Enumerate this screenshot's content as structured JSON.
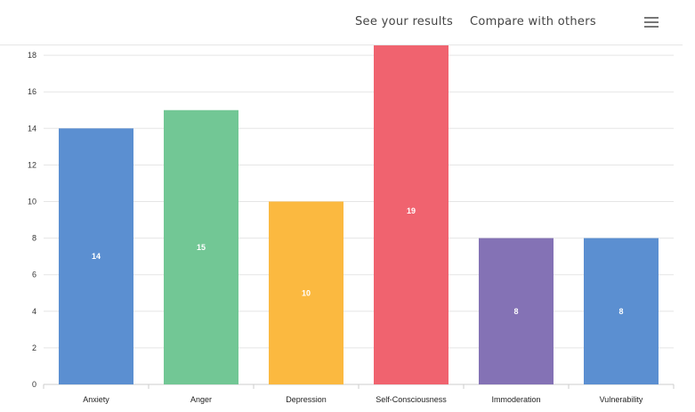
{
  "nav": {
    "see_results": "See your results",
    "compare": "Compare with others",
    "menu_icon": "hamburger-menu-icon"
  },
  "chart_data": {
    "type": "bar",
    "categories": [
      "Anxiety",
      "Anger",
      "Depression",
      "Self-Consciousness",
      "Immoderation",
      "Vulnerability"
    ],
    "values": [
      14,
      15,
      10,
      19,
      8,
      8
    ],
    "colors": [
      "#5b8fd1",
      "#72c795",
      "#fbb940",
      "#f0636f",
      "#8472b5",
      "#5b8fd1"
    ],
    "yticks": [
      0,
      2,
      4,
      6,
      8,
      10,
      12,
      14,
      16,
      18
    ],
    "ylim": [
      0,
      18
    ],
    "grid": true,
    "data_labels": true
  }
}
